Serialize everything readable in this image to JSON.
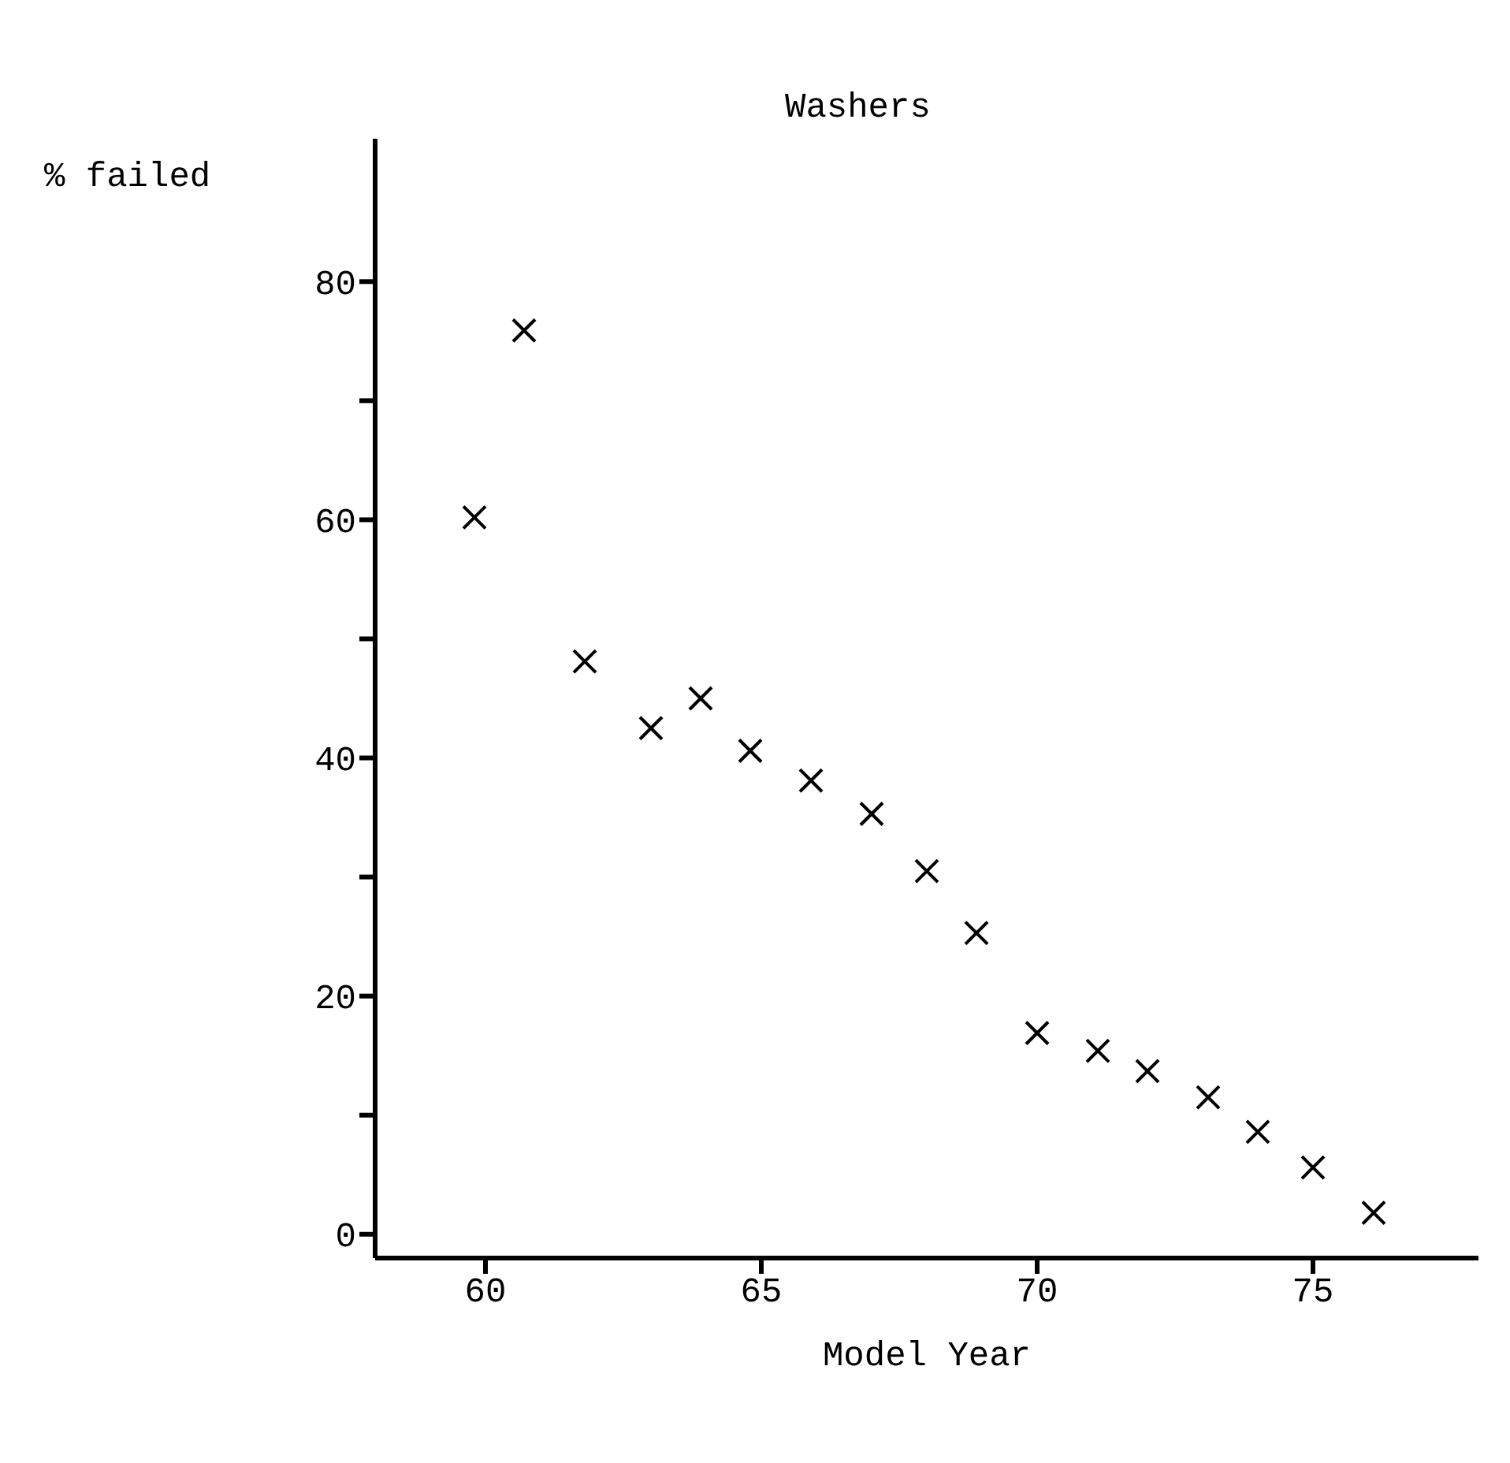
{
  "chart_data": {
    "type": "scatter",
    "title": "Washers",
    "xlabel": "Model Year",
    "ylabel": "% failed",
    "x": [
      59.8,
      60.7,
      61.8,
      63.0,
      63.9,
      64.8,
      65.9,
      67.0,
      68.0,
      68.9,
      70.0,
      71.1,
      72.0,
      73.1,
      74.0,
      75.0,
      76.1
    ],
    "series": [
      {
        "color": "#000000",
        "values": [
          60.2,
          75.9,
          48.1,
          42.5,
          45.0,
          40.6,
          38.1,
          35.3,
          30.5,
          25.3,
          16.9,
          15.4,
          13.7,
          11.5,
          8.6,
          5.6,
          1.8
        ]
      }
    ],
    "xlim": [
      58,
      78
    ],
    "xticks": [
      60,
      65,
      70,
      75
    ],
    "ylim": [
      -2,
      92
    ],
    "yticks": [
      0,
      {
        "value": 10,
        "label": null
      },
      20,
      {
        "value": 30,
        "label": null
      },
      40,
      {
        "value": 50,
        "label": null
      },
      60,
      {
        "value": 70,
        "label": null
      },
      80
    ],
    "marker": "cross"
  }
}
